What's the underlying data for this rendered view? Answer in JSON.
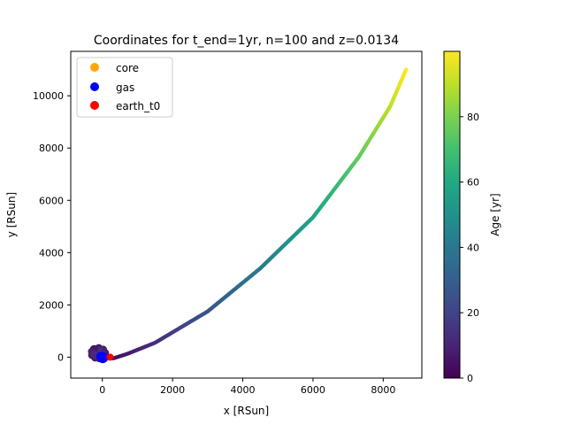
{
  "chart_data": {
    "type": "scatter",
    "title": "Coordinates for t_end=1yr, n=100 and z=0.0134",
    "xlabel": "x [RSun]",
    "ylabel": "y [RSun]",
    "xlim": [
      -900,
      9100
    ],
    "ylim": [
      -800,
      11700
    ],
    "xticks": [
      0,
      2000,
      4000,
      6000,
      8000
    ],
    "yticks": [
      0,
      2000,
      4000,
      6000,
      8000,
      10000
    ],
    "grid": false,
    "legend_position": "top-left",
    "colorbar": {
      "label": "Age [yr]",
      "range": [
        0,
        100
      ],
      "ticks": [
        0,
        20,
        40,
        60,
        80
      ],
      "colormap": "viridis"
    },
    "series": [
      {
        "name": "core",
        "color": "#ffa500",
        "points": [
          [
            0,
            0
          ]
        ]
      },
      {
        "name": "gas",
        "color": "#0000ff",
        "points": [
          [
            -30,
            -20
          ],
          [
            20,
            10
          ],
          [
            -10,
            40
          ],
          [
            40,
            -40
          ],
          [
            -50,
            30
          ],
          [
            10,
            -60
          ]
        ]
      },
      {
        "name": "earth_t0",
        "color": "#ff0000",
        "points": [
          [
            220,
            0
          ]
        ]
      }
    ],
    "trail": {
      "description_points": [
        [
          -250,
          150
        ],
        [
          0,
          0
        ],
        [
          300,
          -50
        ],
        [
          700,
          120
        ],
        [
          1500,
          550
        ],
        [
          3000,
          1750
        ],
        [
          4500,
          3400
        ],
        [
          6000,
          5350
        ],
        [
          7300,
          7650
        ],
        [
          8200,
          9600
        ],
        [
          8650,
          11000
        ]
      ],
      "age_range": [
        0,
        100
      ]
    }
  }
}
